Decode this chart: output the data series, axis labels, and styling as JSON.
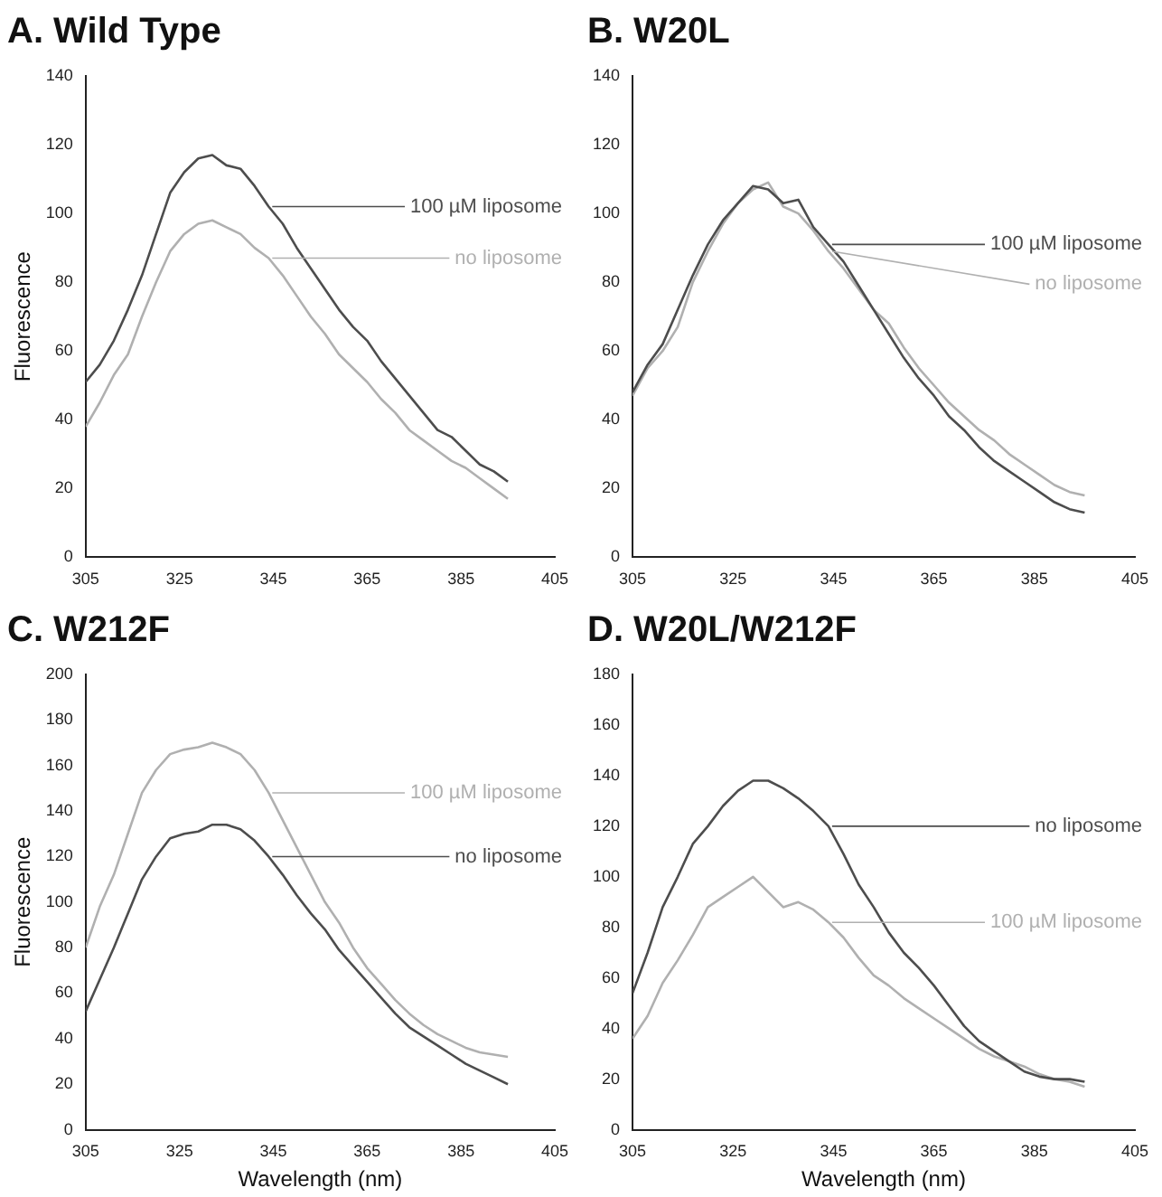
{
  "chart_data": [
    {
      "type": "line",
      "title": "A. Wild Type",
      "ylabel": "Fluorescence",
      "xlim": [
        305,
        405
      ],
      "xticks": [
        305,
        325,
        345,
        365,
        385,
        405
      ],
      "ylim": [
        0,
        140
      ],
      "yticks": [
        0,
        20,
        40,
        60,
        80,
        100,
        120,
        140
      ],
      "grid": false,
      "legend": false,
      "marker": "none",
      "x": [
        305,
        308,
        311,
        314,
        317,
        320,
        323,
        326,
        329,
        332,
        335,
        338,
        341,
        344,
        347,
        350,
        353,
        356,
        359,
        362,
        365,
        368,
        371,
        374,
        377,
        380,
        383,
        386,
        389,
        392,
        395
      ],
      "series": [
        {
          "name": "100 µM liposome",
          "color": "#4d4d4d",
          "values": [
            51,
            56,
            63,
            72,
            82,
            94,
            106,
            112,
            116,
            117,
            114,
            113,
            108,
            102,
            97,
            90,
            84,
            78,
            72,
            67,
            63,
            57,
            52,
            47,
            42,
            37,
            35,
            31,
            27,
            25,
            22
          ]
        },
        {
          "name": "no liposome",
          "color": "#b0b0b0",
          "values": [
            38,
            45,
            53,
            59,
            70,
            80,
            89,
            94,
            97,
            98,
            96,
            94,
            90,
            87,
            82,
            76,
            70,
            65,
            59,
            55,
            51,
            46,
            42,
            37,
            34,
            31,
            28,
            26,
            23,
            20,
            17
          ]
        }
      ]
    },
    {
      "type": "line",
      "title": "B. W20L",
      "xlim": [
        305,
        405
      ],
      "xticks": [
        305,
        325,
        345,
        365,
        385,
        405
      ],
      "ylim": [
        0,
        140
      ],
      "yticks": [
        0,
        20,
        40,
        60,
        80,
        100,
        120,
        140
      ],
      "grid": false,
      "legend": false,
      "marker": "none",
      "x": [
        305,
        308,
        311,
        314,
        317,
        320,
        323,
        326,
        329,
        332,
        335,
        338,
        341,
        344,
        347,
        350,
        353,
        356,
        359,
        362,
        365,
        368,
        371,
        374,
        377,
        380,
        383,
        386,
        389,
        392,
        395
      ],
      "series": [
        {
          "name": "100 µM liposome",
          "color": "#4d4d4d",
          "values": [
            48,
            56,
            62,
            72,
            82,
            91,
            98,
            103,
            108,
            107,
            103,
            104,
            96,
            91,
            86,
            79,
            72,
            65,
            58,
            52,
            47,
            41,
            37,
            32,
            28,
            25,
            22,
            19,
            16,
            14,
            13
          ]
        },
        {
          "name": "no liposome",
          "color": "#b0b0b0",
          "values": [
            47,
            55,
            60,
            67,
            80,
            89,
            97,
            103,
            107,
            109,
            102,
            100,
            95,
            89,
            84,
            78,
            72,
            68,
            61,
            55,
            50,
            45,
            41,
            37,
            34,
            30,
            27,
            24,
            21,
            19,
            18
          ]
        }
      ]
    },
    {
      "type": "line",
      "title": "C. W212F",
      "xlabel": "Wavelength (nm)",
      "ylabel": "Fluorescence",
      "xlim": [
        305,
        405
      ],
      "xticks": [
        305,
        325,
        345,
        365,
        385,
        405
      ],
      "ylim": [
        0,
        200
      ],
      "yticks": [
        0,
        20,
        40,
        60,
        80,
        100,
        120,
        140,
        160,
        180,
        200
      ],
      "grid": false,
      "legend": false,
      "marker": "none",
      "x": [
        305,
        308,
        311,
        314,
        317,
        320,
        323,
        326,
        329,
        332,
        335,
        338,
        341,
        344,
        347,
        350,
        353,
        356,
        359,
        362,
        365,
        368,
        371,
        374,
        377,
        380,
        383,
        386,
        389,
        392,
        395
      ],
      "series": [
        {
          "name": "100 µM liposome",
          "color": "#b0b0b0",
          "values": [
            80,
            98,
            112,
            130,
            148,
            158,
            165,
            167,
            168,
            170,
            168,
            165,
            158,
            148,
            136,
            124,
            112,
            100,
            91,
            80,
            71,
            64,
            57,
            51,
            46,
            42,
            39,
            36,
            34,
            33,
            32
          ]
        },
        {
          "name": "no liposome",
          "color": "#4d4d4d",
          "values": [
            52,
            66,
            80,
            95,
            110,
            120,
            128,
            130,
            131,
            134,
            134,
            132,
            127,
            120,
            112,
            103,
            95,
            88,
            79,
            72,
            65,
            58,
            51,
            45,
            41,
            37,
            33,
            29,
            26,
            23,
            20
          ]
        }
      ]
    },
    {
      "type": "line",
      "title": "D. W20L/W212F",
      "xlabel": "Wavelength (nm)",
      "xlim": [
        305,
        405
      ],
      "xticks": [
        305,
        325,
        345,
        365,
        385,
        405
      ],
      "ylim": [
        0,
        180
      ],
      "yticks": [
        0,
        20,
        40,
        60,
        80,
        100,
        120,
        140,
        160,
        180
      ],
      "grid": false,
      "legend": false,
      "marker": "none",
      "x": [
        305,
        308,
        311,
        314,
        317,
        320,
        323,
        326,
        329,
        332,
        335,
        338,
        341,
        344,
        347,
        350,
        353,
        356,
        359,
        362,
        365,
        368,
        371,
        374,
        377,
        380,
        383,
        386,
        389,
        392,
        395
      ],
      "series": [
        {
          "name": "no liposome",
          "color": "#4d4d4d",
          "values": [
            54,
            70,
            88,
            100,
            113,
            120,
            128,
            134,
            138,
            138,
            135,
            131,
            126,
            120,
            109,
            97,
            88,
            78,
            70,
            64,
            57,
            49,
            41,
            35,
            31,
            27,
            23,
            21,
            20,
            20,
            19
          ]
        },
        {
          "name": "100 µM liposome",
          "color": "#b0b0b0",
          "values": [
            36,
            45,
            58,
            67,
            77,
            88,
            92,
            96,
            100,
            94,
            88,
            90,
            87,
            82,
            76,
            68,
            61,
            57,
            52,
            48,
            44,
            40,
            36,
            32,
            29,
            27,
            25,
            22,
            20,
            19,
            17
          ]
        }
      ]
    }
  ]
}
